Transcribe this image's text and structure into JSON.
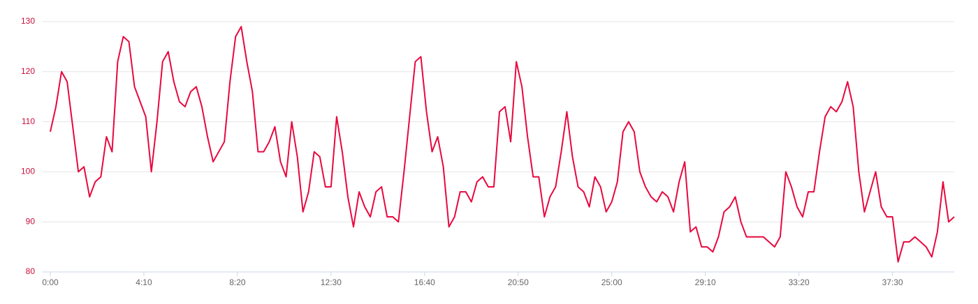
{
  "chart_data": {
    "type": "line",
    "x": [
      0,
      15,
      30,
      45,
      60,
      75,
      90,
      105,
      120,
      135,
      150,
      165,
      180,
      195,
      210,
      225,
      240,
      255,
      270,
      285,
      300,
      315,
      330,
      345,
      360,
      375,
      390,
      405,
      420,
      435,
      450,
      465,
      480,
      495,
      510,
      525,
      540,
      555,
      570,
      585,
      600,
      615,
      630,
      645,
      660,
      675,
      690,
      705,
      720,
      735,
      750,
      765,
      780,
      795,
      810,
      825,
      840,
      855,
      870,
      885,
      900,
      915,
      930,
      945,
      960,
      975,
      990,
      1005,
      1020,
      1035,
      1050,
      1065,
      1080,
      1095,
      1110,
      1125,
      1140,
      1155,
      1170,
      1185,
      1200,
      1215,
      1230,
      1245,
      1260,
      1275,
      1290,
      1305,
      1320,
      1335,
      1350,
      1365,
      1380,
      1395,
      1410,
      1425,
      1440,
      1455,
      1470,
      1485,
      1500,
      1515,
      1530,
      1545,
      1560,
      1575,
      1590,
      1605,
      1620,
      1635,
      1650,
      1665,
      1680,
      1695,
      1710,
      1725,
      1740,
      1755,
      1770,
      1785,
      1800,
      1815,
      1830,
      1845,
      1860,
      1875,
      1890,
      1905,
      1920,
      1935,
      1950,
      1965,
      1980,
      1995,
      2010,
      2025,
      2040,
      2055,
      2070,
      2085,
      2100,
      2115,
      2130,
      2145,
      2160,
      2175,
      2190,
      2205,
      2220,
      2235,
      2250,
      2265,
      2280,
      2295,
      2310,
      2325,
      2340,
      2355,
      2370,
      2385,
      2400,
      2415
    ],
    "series": [
      {
        "color": "#e8083e",
        "values": [
          108,
          113,
          120,
          118,
          109,
          100,
          101,
          95,
          98,
          99,
          107,
          104,
          122,
          127,
          126,
          117,
          114,
          111,
          100,
          110,
          122,
          124,
          118,
          114,
          113,
          116,
          117,
          113,
          107,
          102,
          104,
          106,
          118,
          127,
          129,
          122,
          116,
          104,
          104,
          106,
          109,
          102,
          99,
          110,
          103,
          92,
          96,
          104,
          103,
          97,
          97,
          111,
          104,
          95,
          89,
          96,
          93,
          91,
          96,
          97,
          91,
          91,
          90,
          100,
          111,
          122,
          123,
          112,
          104,
          107,
          101,
          89,
          91,
          96,
          96,
          94,
          98,
          99,
          97,
          97,
          112,
          113,
          106,
          122,
          117,
          107,
          99,
          99,
          91,
          95,
          97,
          104,
          112,
          103,
          97,
          96,
          93,
          99,
          97,
          92,
          94,
          98,
          108,
          110,
          108,
          100,
          97,
          95,
          94,
          96,
          95,
          92,
          98,
          102,
          88,
          89,
          85,
          85,
          84,
          87,
          92,
          93,
          95,
          90,
          87,
          87,
          87,
          87,
          86,
          85,
          87,
          100,
          97,
          93,
          91,
          96,
          96,
          104,
          111,
          113,
          112,
          114,
          118,
          113,
          100,
          92,
          96,
          100,
          93,
          91,
          91,
          82,
          86,
          86,
          87,
          86,
          85,
          83,
          88,
          98,
          90,
          91
        ]
      }
    ],
    "xlim": [
      0,
      2415
    ],
    "xticks": [
      {
        "value": 0,
        "label": "0:00"
      },
      {
        "value": 250,
        "label": "4:10"
      },
      {
        "value": 500,
        "label": "8:20"
      },
      {
        "value": 750,
        "label": "12:30"
      },
      {
        "value": 1000,
        "label": "16:40"
      },
      {
        "value": 1250,
        "label": "20:50"
      },
      {
        "value": 1500,
        "label": "25:00"
      },
      {
        "value": 1750,
        "label": "29:10"
      },
      {
        "value": 2000,
        "label": "33:20"
      },
      {
        "value": 2250,
        "label": "37:30"
      }
    ],
    "ylim": [
      80,
      130
    ],
    "yticks": [
      80,
      90,
      100,
      110,
      120,
      130
    ],
    "grid": true
  }
}
